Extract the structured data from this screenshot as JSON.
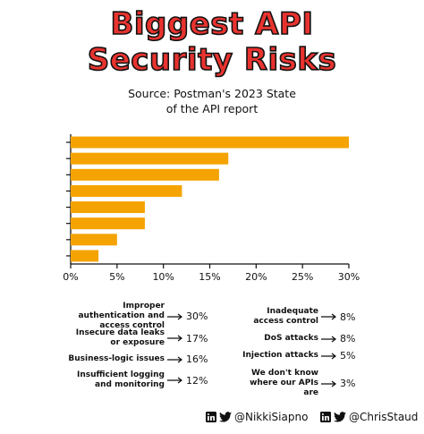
{
  "title": {
    "line1": "Biggest API",
    "line2": "Security Risks"
  },
  "subtitle": {
    "line1": "Source: Postman's 2023 State",
    "line2": "of the API report"
  },
  "chart_data": {
    "type": "bar",
    "orientation": "horizontal",
    "categories": [
      "Improper authentication and access control",
      "Insecure data leaks or exposure",
      "Business-logic issues",
      "Insufficient logging and monitoring",
      "Inadequate access control",
      "DoS attacks",
      "Injection attacks",
      "We don't know where our APIs are"
    ],
    "values": [
      30,
      17,
      16,
      12,
      8,
      8,
      5,
      3
    ],
    "xlim": [
      0,
      30
    ],
    "xticks": [
      "0%",
      "5%",
      "10%",
      "15%",
      "20%",
      "25%",
      "30%"
    ],
    "bar_color": "#f5a300",
    "grid": false
  },
  "legend": {
    "left": [
      {
        "label": "Improper authentication and access control",
        "pct": "30%"
      },
      {
        "label": "Insecure data leaks or exposure",
        "pct": "17%"
      },
      {
        "label": "Business-logic issues",
        "pct": "16%"
      },
      {
        "label": "Insufficient logging and monitoring",
        "pct": "12%"
      }
    ],
    "right": [
      {
        "label": "Inadequate access control",
        "pct": "8%"
      },
      {
        "label": "DoS attacks",
        "pct": "8%"
      },
      {
        "label": "Injection attacks",
        "pct": "5%"
      },
      {
        "label": "We don't know where our APIs are",
        "pct": "3%"
      }
    ]
  },
  "footer": {
    "handle1": "@NikkiSiapno",
    "handle2": "@ChrisStaud",
    "icons": [
      "linkedin-icon",
      "twitter-icon"
    ],
    "linkedin_color": "#111111",
    "twitter_color": "#111111"
  },
  "colors": {
    "title": "#e8332f",
    "bar": "#f5a300"
  }
}
